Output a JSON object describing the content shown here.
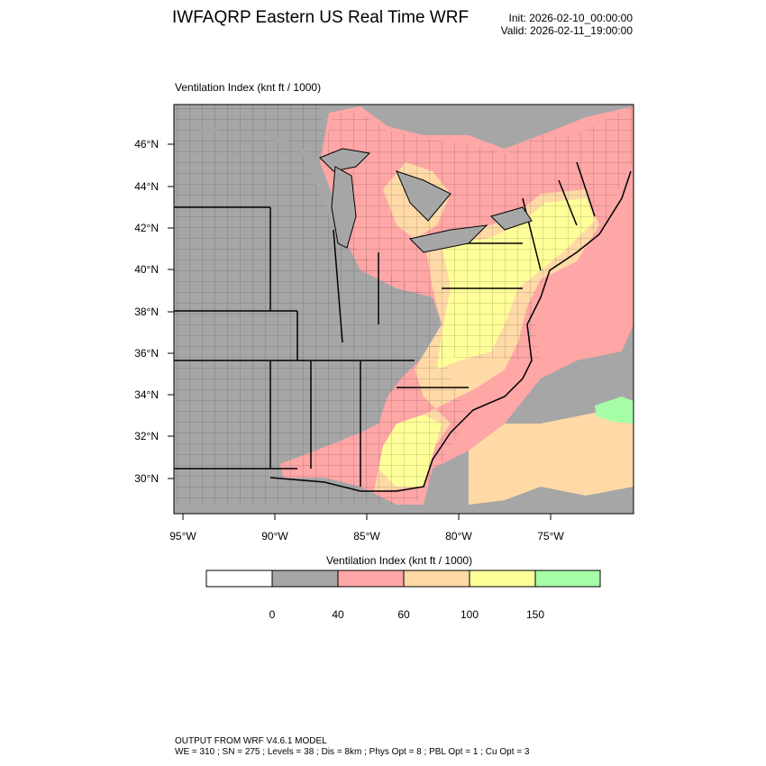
{
  "header": {
    "title": "IWFAQRP Eastern US Real Time WRF",
    "init": "Init: 2026-02-10_00:00:00",
    "valid": "Valid: 2026-02-11_19:00:00"
  },
  "map": {
    "title": "Ventilation Index   (knt ft / 1000)",
    "lat_labels": [
      "46°N",
      "44°N",
      "42°N",
      "40°N",
      "38°N",
      "36°N",
      "34°N",
      "32°N",
      "30°N"
    ],
    "lon_labels": [
      "95°W",
      "90°W",
      "85°W",
      "80°W",
      "75°W"
    ]
  },
  "legend": {
    "title": "Ventilation Index  (knt ft / 1000)",
    "ticks": [
      "0",
      "40",
      "60",
      "100",
      "150"
    ],
    "colors": [
      "#ffffff",
      "#a6a6a6",
      "#ffa6a6",
      "#ffd9a6",
      "#ffff99",
      "#a6ffa6"
    ]
  },
  "footer": {
    "line1": "OUTPUT FROM WRF V4.6.1 MODEL",
    "line2": "WE = 310 ; SN = 275 ; Levels = 38 ; Dis = 8km ; Phys Opt = 8 ; PBL Opt = 1 ; Cu Opt = 3"
  }
}
